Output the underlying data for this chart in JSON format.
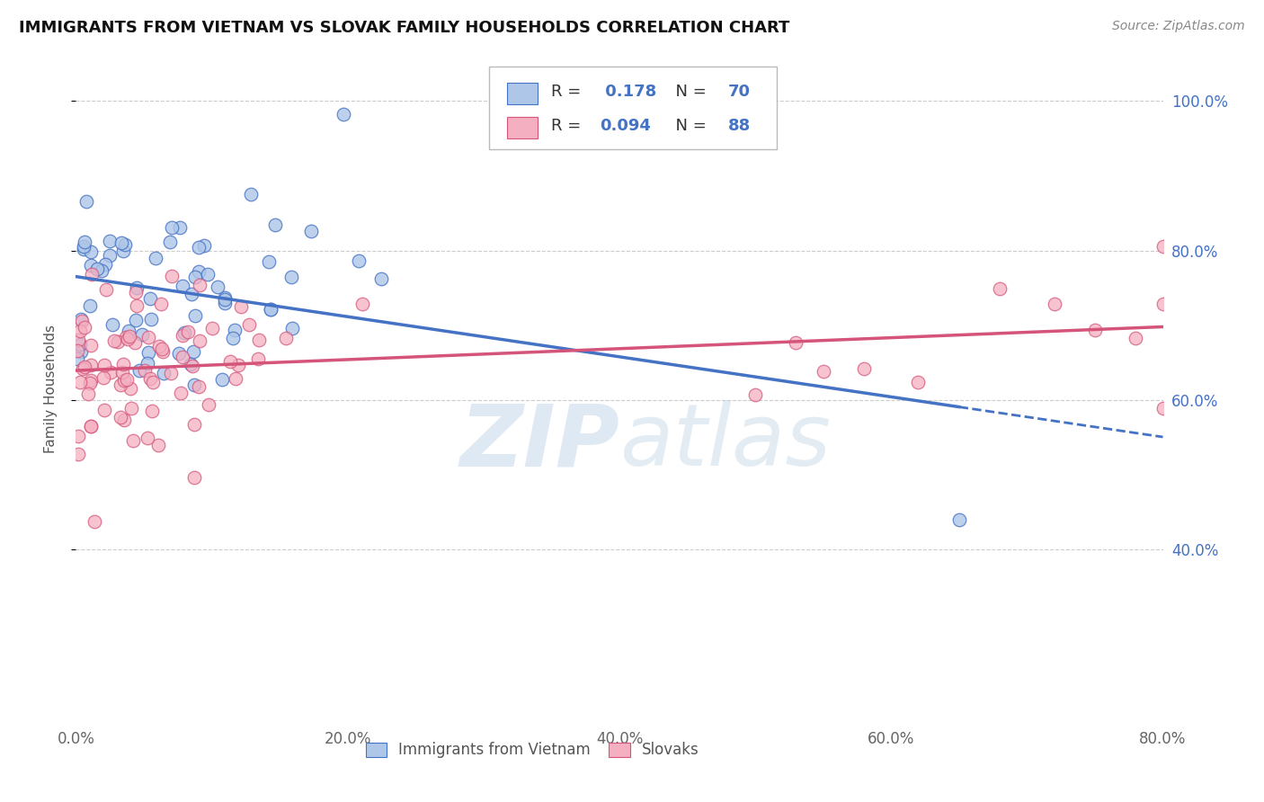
{
  "title": "IMMIGRANTS FROM VIETNAM VS SLOVAK FAMILY HOUSEHOLDS CORRELATION CHART",
  "source": "Source: ZipAtlas.com",
  "ylabel": "Family Households",
  "yticks_right": [
    "40.0%",
    "60.0%",
    "80.0%",
    "100.0%"
  ],
  "ytick_vals": [
    0.4,
    0.6,
    0.8,
    1.0
  ],
  "xlim": [
    0.0,
    0.8
  ],
  "ylim": [
    0.17,
    1.06
  ],
  "r_vietnam": 0.178,
  "n_vietnam": 70,
  "r_slovak": 0.094,
  "n_slovak": 88,
  "color_vietnam": "#aec6e8",
  "color_slovak": "#f4afc0",
  "trendline_vietnam": "#4472c4",
  "trendline_slovak": "#d4547a",
  "grid_color": "#cccccc",
  "title_fontsize": 13,
  "tick_fontsize": 12
}
